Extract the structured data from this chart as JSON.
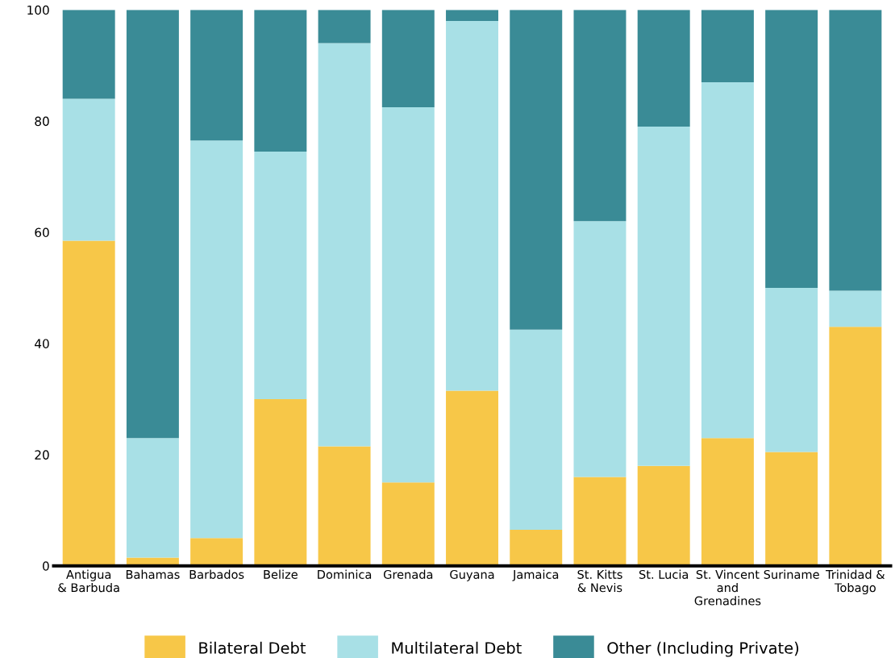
{
  "chart_data": {
    "type": "bar",
    "stacked": true,
    "categories": [
      "Antigua\n& Barbuda",
      "Bahamas",
      "Barbados",
      "Belize",
      "Dominica",
      "Grenada",
      "Guyana",
      "Jamaica",
      "St. Kitts\n& Nevis",
      "St. Lucia",
      "St. Vincent\nand\nGrenadines",
      "Suriname",
      "Trinidad &\nTobago"
    ],
    "series": [
      {
        "name": "Bilateral Debt",
        "color": "#f7c748",
        "values": [
          58.5,
          1.5,
          5,
          30,
          21.5,
          15,
          31.5,
          6.5,
          16,
          18,
          23,
          20.5,
          43
        ]
      },
      {
        "name": "Multilateral Debt",
        "color": "#a8e0e6",
        "values": [
          25.5,
          21.5,
          71.5,
          44.5,
          72.5,
          67.5,
          66.5,
          36,
          46,
          61,
          64,
          29.5,
          6.5
        ]
      },
      {
        "name": "Other (Including Private)",
        "color": "#3a8b96",
        "values": [
          16,
          77,
          23.5,
          25.5,
          6,
          17.5,
          2,
          57.5,
          38,
          21,
          13,
          50,
          50.5
        ]
      }
    ],
    "ylim": [
      0,
      100
    ],
    "yticks": [
      0,
      20,
      40,
      60,
      80,
      100
    ],
    "grid": false,
    "legend": "bottom"
  }
}
